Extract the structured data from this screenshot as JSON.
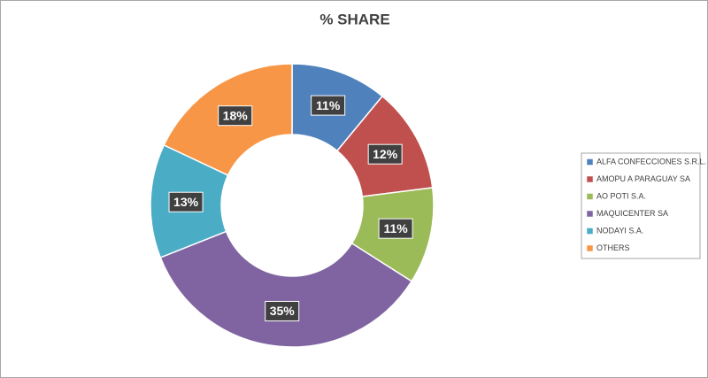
{
  "chart_data": {
    "type": "donut",
    "title": "% SHARE",
    "categories": [
      "ALFA CONFECCIONES S.R.L.",
      "AMOPU A PARAGUAY SA",
      "AO POTI  S.A.",
      "MAQUICENTER SA",
      "NODAYI S.A.",
      "OTHERS"
    ],
    "values": [
      11,
      12,
      11,
      35,
      13,
      18
    ],
    "value_labels": [
      "11%",
      "12%",
      "11%",
      "35%",
      "13%",
      "18%"
    ],
    "colors": [
      "#4f81bd",
      "#c0504d",
      "#9bbb59",
      "#8064a2",
      "#4bacc6",
      "#f79646"
    ],
    "legend": "right"
  }
}
